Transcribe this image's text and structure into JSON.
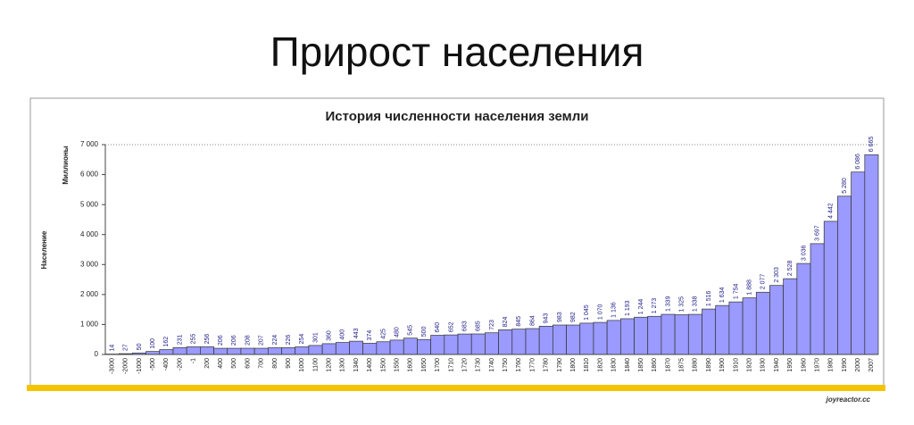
{
  "slide_title": "Прирост населения",
  "watermark": "joyreactor.cc",
  "chart_data": {
    "type": "bar",
    "title": "История численности населения земли",
    "y_unit": "Миллионы",
    "y_label": "Население",
    "categories": [
      "-3000",
      "-2000",
      "-1000",
      "-500",
      "-400",
      "-200",
      "-1",
      "200",
      "400",
      "500",
      "600",
      "700",
      "800",
      "900",
      "1000",
      "1100",
      "1200",
      "1300",
      "1340",
      "1400",
      "1500",
      "1550",
      "1600",
      "1650",
      "1700",
      "1710",
      "1720",
      "1730",
      "1740",
      "1750",
      "1760",
      "1770",
      "1780",
      "1790",
      "1800",
      "1810",
      "1820",
      "1830",
      "1840",
      "1850",
      "1860",
      "1870",
      "1875",
      "1880",
      "1890",
      "1900",
      "1910",
      "1920",
      "1930",
      "1940",
      "1950",
      "1960",
      "1970",
      "1980",
      "1990",
      "2000",
      "2007"
    ],
    "values": [
      14,
      27,
      50,
      100,
      162,
      231,
      255,
      256,
      206,
      206,
      208,
      207,
      224,
      226,
      254,
      301,
      360,
      400,
      443,
      374,
      425,
      480,
      545,
      500,
      640,
      652,
      683,
      685,
      723,
      824,
      845,
      864,
      943,
      983,
      982,
      1045,
      1070,
      1136,
      1193,
      1244,
      1273,
      1339,
      1325,
      1338,
      1516,
      1634,
      1754,
      1888,
      2077,
      2303,
      2528,
      3036,
      3697,
      4442,
      5280,
      6086,
      6665
    ],
    "value_labels": [
      "14",
      "27",
      "50",
      "100",
      "162",
      "231",
      "255",
      "256",
      "206",
      "206",
      "208",
      "207",
      "224",
      "226",
      "254",
      "301",
      "360",
      "400",
      "443",
      "374",
      "425",
      "480",
      "545",
      "500",
      "640",
      "652",
      "683",
      "685",
      "723",
      "824",
      "845",
      "864",
      "943",
      "983",
      "982",
      "1 045",
      "1 070",
      "1 136",
      "1 193",
      "1 244",
      "1 273",
      "1 339",
      "1 325",
      "1 338",
      "1 516",
      "1 634",
      "1 754",
      "1 888",
      "2 077",
      "2 303",
      "2 528",
      "3 036",
      "3 697",
      "4 442",
      "5 280",
      "6 086",
      "6 665"
    ],
    "color": "#9a9aff",
    "ylim": [
      0,
      7000
    ],
    "yticks": [
      0,
      {
        "value": 1000,
        "label": "1 000"
      },
      {
        "value": 2000,
        "label": "2 000"
      },
      {
        "value": 3000,
        "label": "3 000"
      },
      {
        "value": 4000,
        "label": "4 000"
      },
      {
        "value": 5000,
        "label": "5 000"
      },
      {
        "value": 6000,
        "label": "6 000"
      },
      {
        "value": 7000,
        "label": "7 000"
      }
    ]
  }
}
